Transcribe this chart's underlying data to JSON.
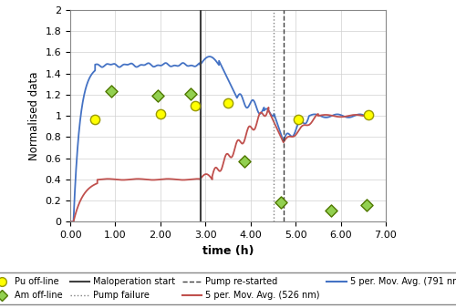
{
  "xlim": [
    0.0,
    7.0
  ],
  "ylim": [
    0.0,
    2.0
  ],
  "xlabel": "time (h)",
  "ylabel": "Normalised data",
  "xticks": [
    0.0,
    1.0,
    2.0,
    3.0,
    4.0,
    5.0,
    6.0,
    7.0
  ],
  "xticklabels": [
    "0.00",
    "1.00",
    "2.00",
    "3.00",
    "4.00",
    "5.00",
    "6.00",
    "7.00"
  ],
  "yticks": [
    0,
    0.2,
    0.4,
    0.6,
    0.8,
    1.0,
    1.2,
    1.4,
    1.6,
    1.8,
    2.0
  ],
  "yticklabels": [
    "0",
    "0.2",
    "0.4",
    "0.6",
    "0.8",
    "1",
    "1.2",
    "1.4",
    "1.6",
    "1.8",
    "2"
  ],
  "maloperation_x": 2.9,
  "pump_failure_x": 4.52,
  "pump_restart_x": 4.73,
  "pu_offline_x": [
    0.55,
    2.0,
    2.78,
    3.5,
    5.05,
    6.62
  ],
  "pu_offline_y": [
    0.97,
    1.02,
    1.1,
    1.12,
    0.97,
    1.01
  ],
  "am_offline_x": [
    0.9,
    1.95,
    2.68,
    3.87,
    4.68,
    5.78,
    6.57
  ],
  "am_offline_y": [
    1.23,
    1.19,
    1.21,
    0.57,
    0.18,
    0.11,
    0.16
  ],
  "blue_line_color": "#4472C4",
  "red_line_color": "#C0504D",
  "maloperation_color": "#404040",
  "pump_failure_color": "#808080",
  "pump_restart_color": "#404040",
  "pu_color": "#FFFF00",
  "pu_edge_color": "#999900",
  "am_color": "#92D050",
  "am_edge_color": "#507800",
  "figsize": [
    5.0,
    3.38
  ],
  "dpi": 100
}
